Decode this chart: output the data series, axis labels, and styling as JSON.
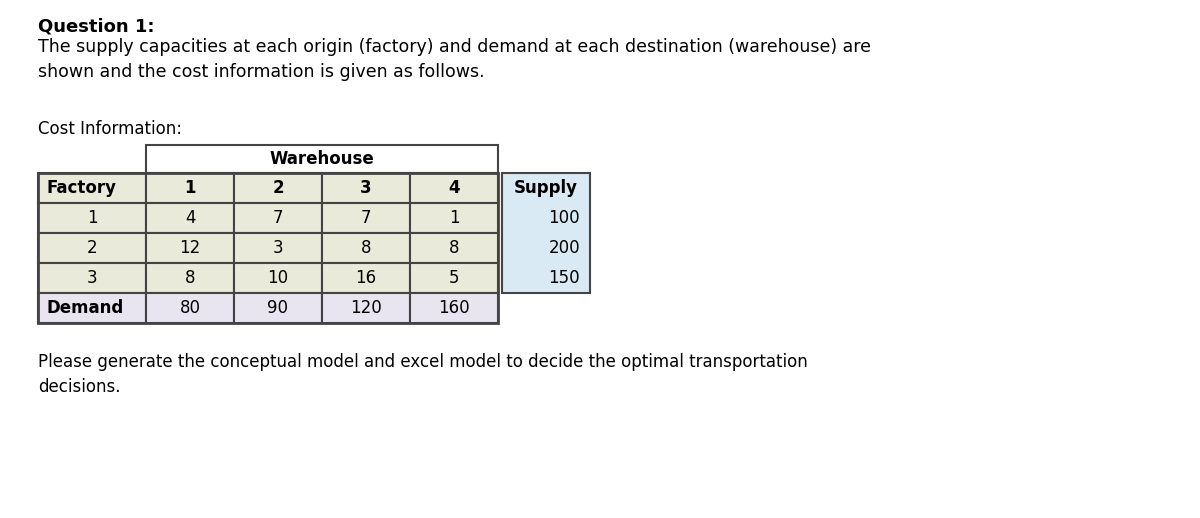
{
  "title_bold": "Question 1:",
  "title_normal": "The supply capacities at each origin (factory) and demand at each destination (warehouse) are\nshown and the cost information is given as follows.",
  "section_label": "Cost Information:",
  "warehouse_header": "Warehouse",
  "factory_header": "Factory",
  "supply_header": "Supply",
  "demand_label": "Demand",
  "warehouse_cols": [
    "1",
    "2",
    "3",
    "4"
  ],
  "factory_rows": [
    "1",
    "2",
    "3"
  ],
  "cost_matrix": [
    [
      4,
      7,
      7,
      1
    ],
    [
      12,
      3,
      8,
      8
    ],
    [
      8,
      10,
      16,
      5
    ]
  ],
  "supply_values": [
    100,
    200,
    150
  ],
  "demand_values": [
    80,
    90,
    120,
    160
  ],
  "footer_text": "Please generate the conceptual model and excel model to decide the optimal transportation\ndecisions.",
  "color_factory_bg": "#eaeadb",
  "color_supply_bg": "#daeaf4",
  "color_demand_bg": "#e8e4f0",
  "color_white": "#ffffff",
  "color_border": "#444444",
  "bg_color": "#ffffff",
  "fig_width": 12.0,
  "fig_height": 5.18,
  "dpi": 100
}
